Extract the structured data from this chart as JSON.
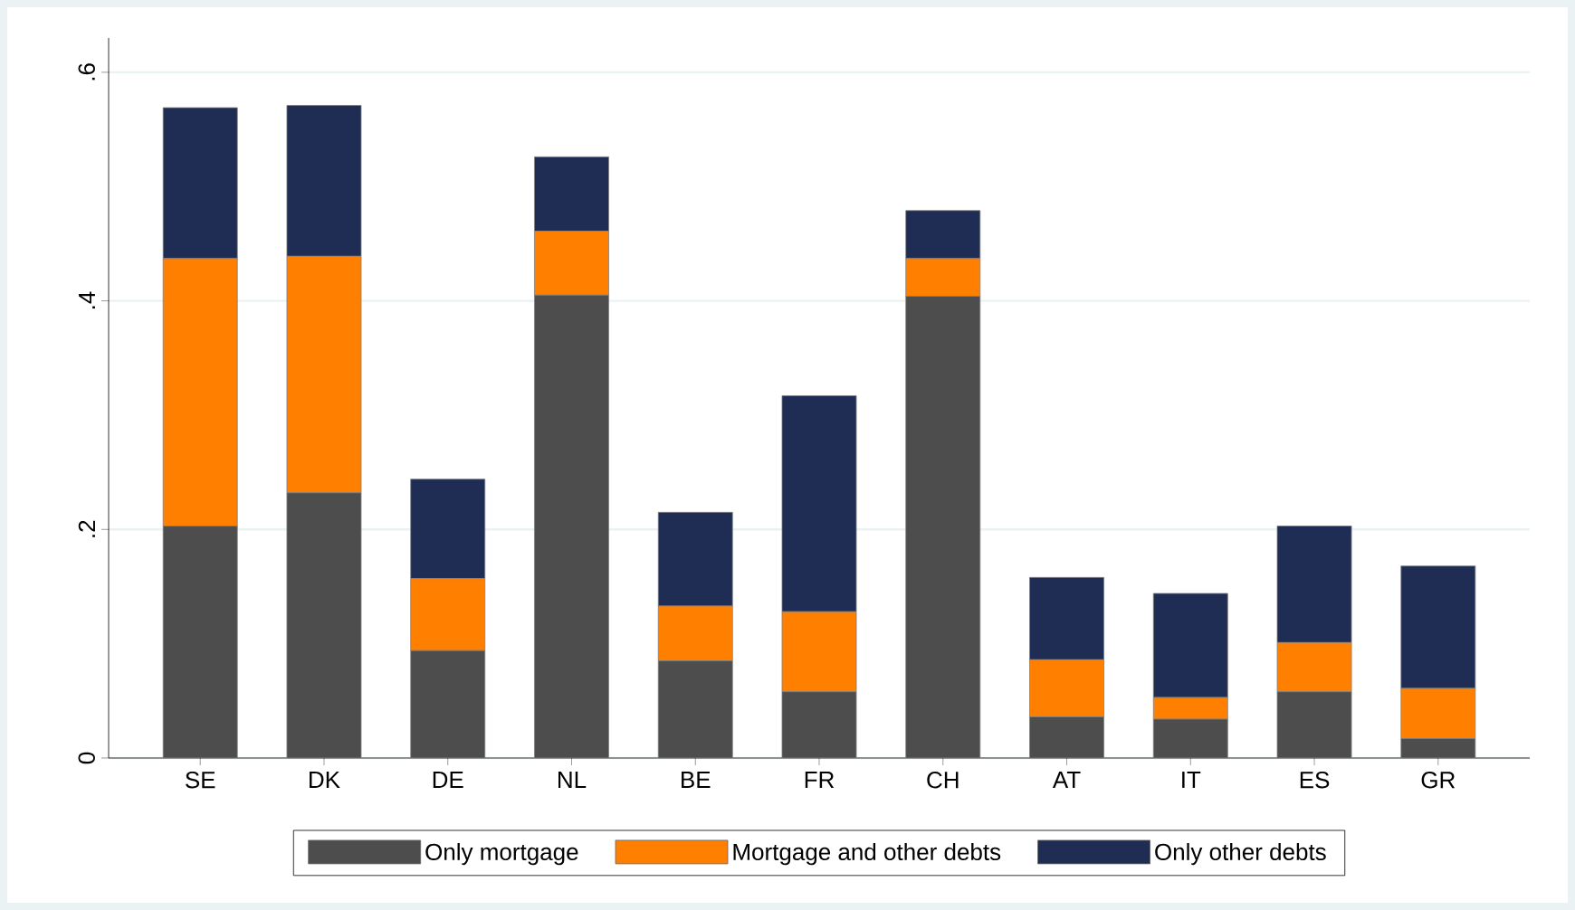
{
  "chart_data": {
    "type": "bar",
    "stacked": true,
    "categories": [
      "SE",
      "DK",
      "DE",
      "NL",
      "BE",
      "FR",
      "CH",
      "AT",
      "IT",
      "ES",
      "GR"
    ],
    "series": [
      {
        "name": "Only mortgage",
        "color": "#4d4d4d",
        "values": [
          0.203,
          0.232,
          0.094,
          0.405,
          0.085,
          0.058,
          0.404,
          0.036,
          0.034,
          0.058,
          0.017
        ]
      },
      {
        "name": "Mortgage and other debts",
        "color": "#ff7f00",
        "values": [
          0.234,
          0.207,
          0.063,
          0.056,
          0.048,
          0.07,
          0.033,
          0.05,
          0.019,
          0.043,
          0.044
        ]
      },
      {
        "name": "Only other debts",
        "color": "#1f2d54",
        "values": [
          0.132,
          0.132,
          0.087,
          0.065,
          0.082,
          0.189,
          0.042,
          0.072,
          0.091,
          0.102,
          0.107
        ]
      }
    ],
    "ylim": [
      0,
      0.63
    ],
    "yticks": [
      0,
      {
        "value": 0.2,
        "label": ".2"
      },
      {
        "value": 0.4,
        "label": ".4"
      },
      {
        "value": 0.6,
        "label": ".6"
      }
    ],
    "grid": "y",
    "legend": "bottom"
  }
}
